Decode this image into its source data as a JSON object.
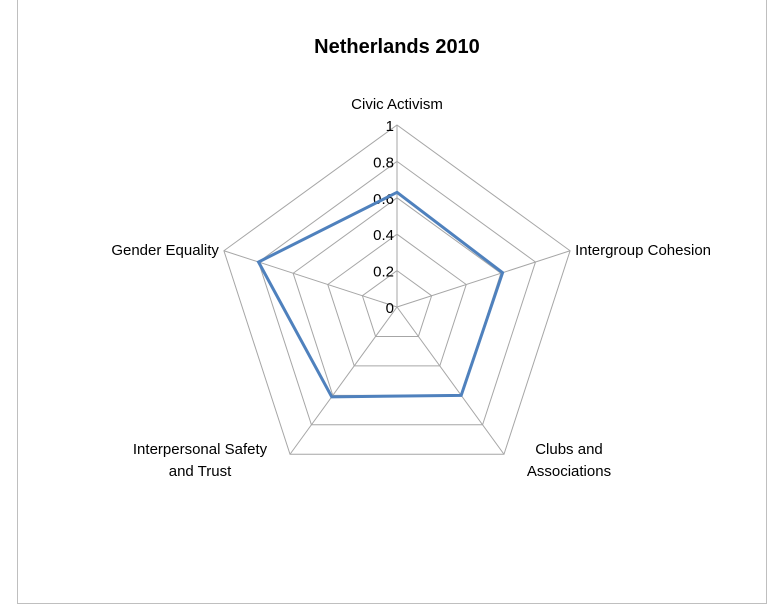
{
  "chart_data": {
    "type": "radar",
    "title": "Netherlands 2010",
    "axes": [
      [
        "Civic Activism"
      ],
      [
        "Intergroup Cohesion"
      ],
      [
        "Clubs and",
        "Associations"
      ],
      [
        "Interpersonal Safety",
        "and Trust"
      ],
      [
        "Gender Equality"
      ]
    ],
    "categories": [
      "Civic Activism",
      "Intergroup Cohesion",
      "Clubs and Associations",
      "Interpersonal Safety and Trust",
      "Gender Equality"
    ],
    "series": [
      {
        "values": [
          0.63,
          0.61,
          0.6,
          0.61,
          0.8
        ]
      }
    ],
    "rlim": [
      0,
      1
    ],
    "ticks": [
      "0",
      "0.2",
      "0.4",
      "0.6",
      "0.8",
      "1"
    ],
    "tick_values": [
      0,
      0.2,
      0.4,
      0.6,
      0.8,
      1
    ],
    "grid": true,
    "legend": "none",
    "colors": {
      "series": "#4f81bd",
      "grid": "#a6a6a6",
      "frame": "#bfbfbf"
    }
  }
}
